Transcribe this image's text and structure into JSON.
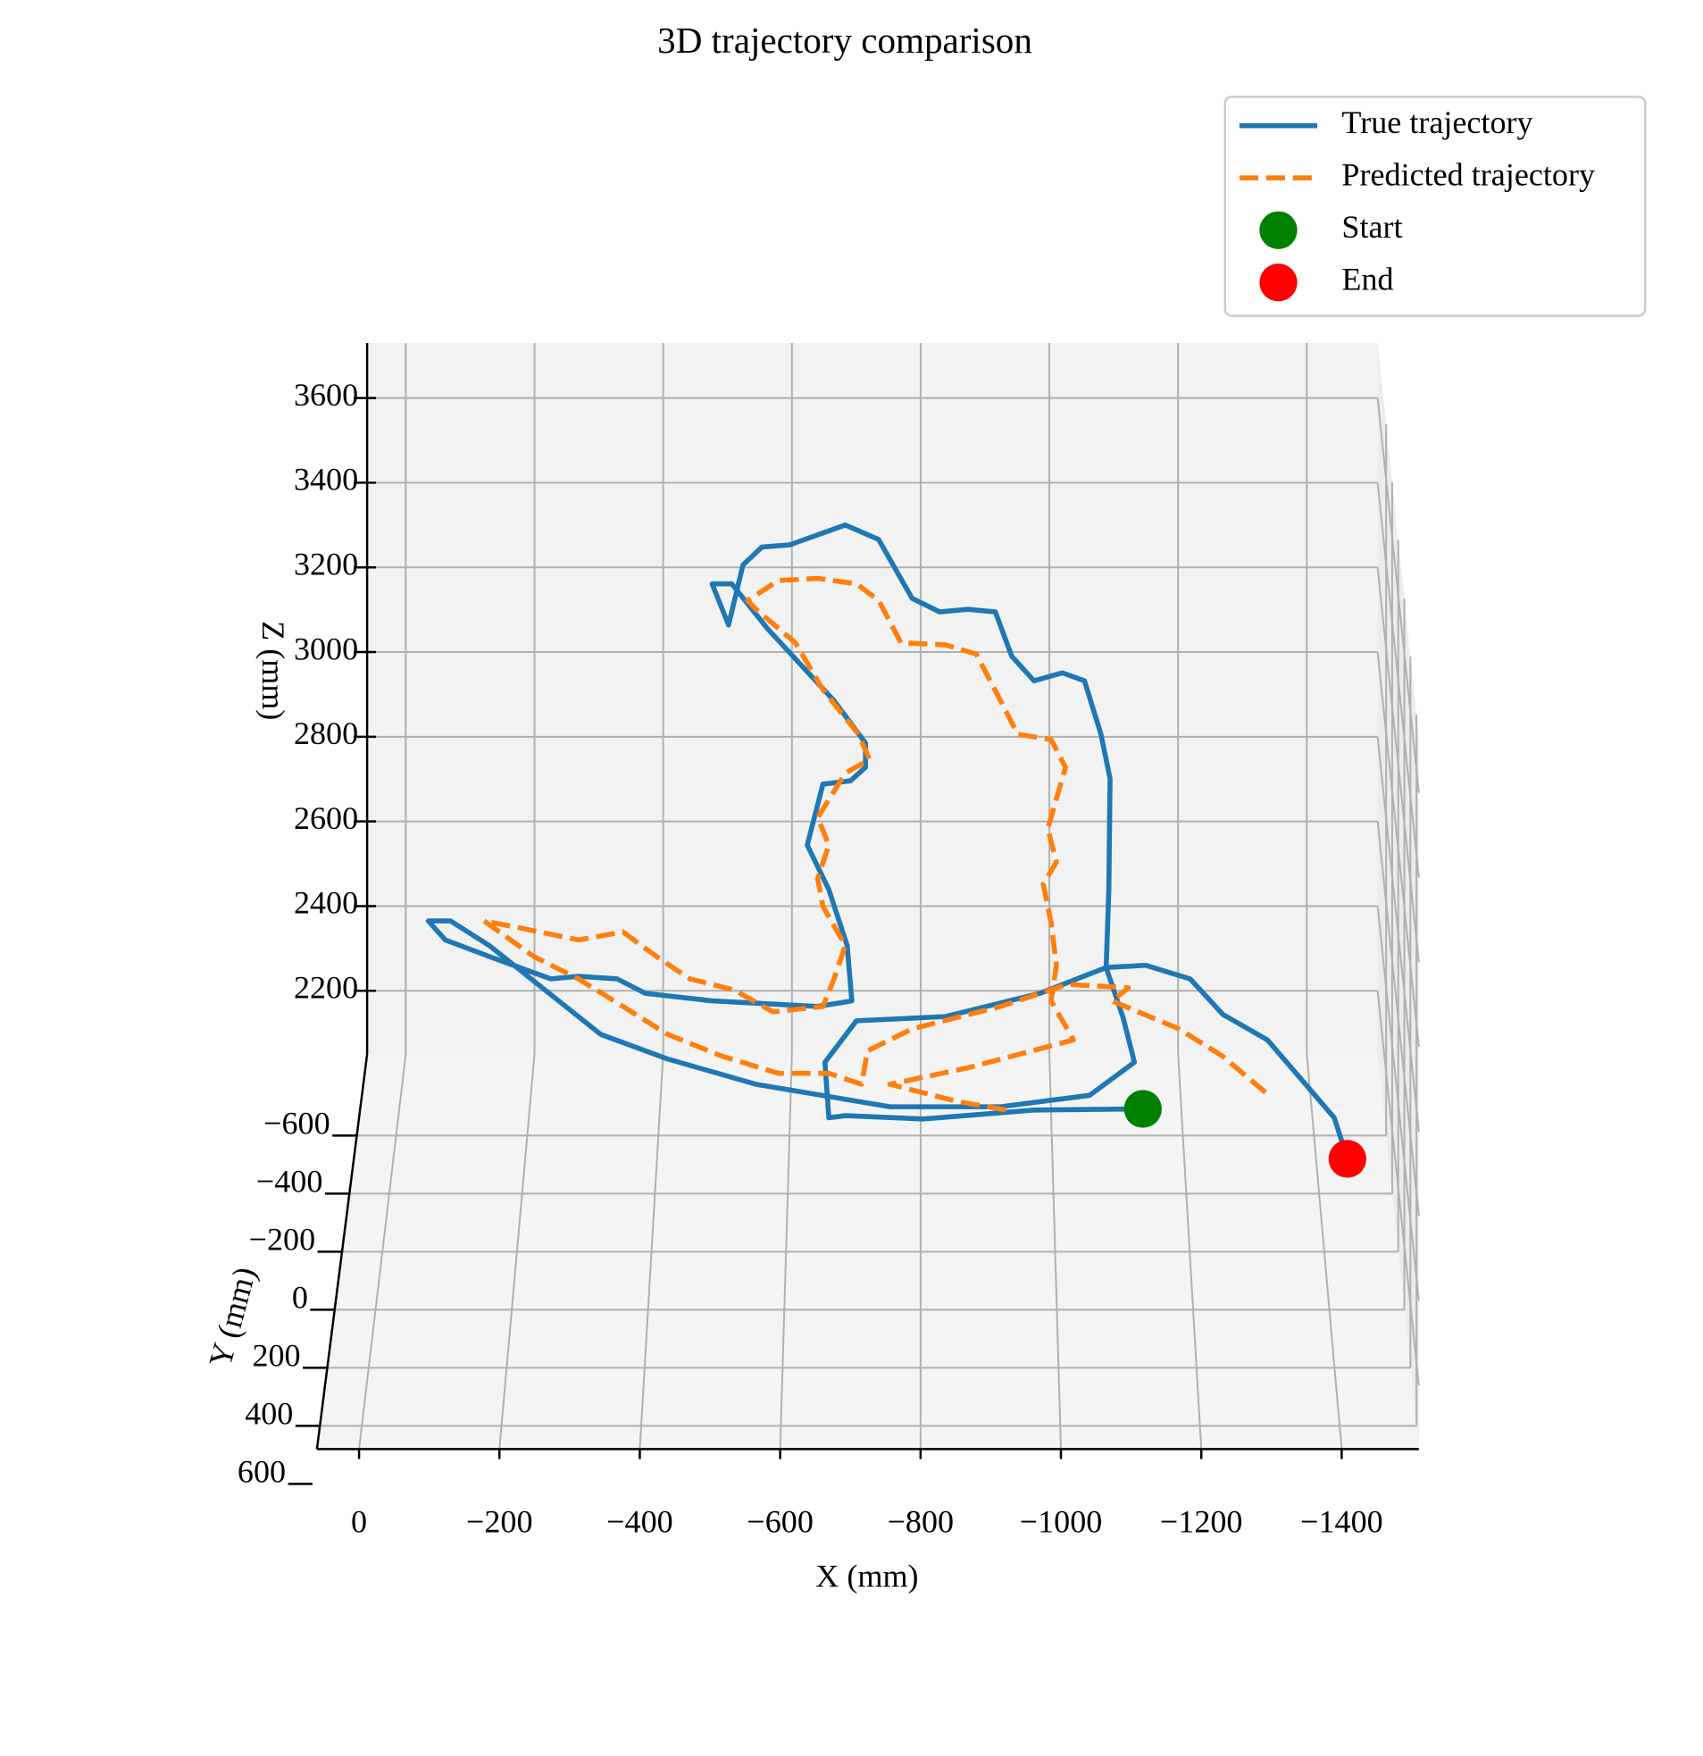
{
  "chart_data": {
    "type": "line3d",
    "title": "3D trajectory comparison",
    "xlabel": "X (mm)",
    "ylabel": "Y (mm)",
    "zlabel": "Z (mm)",
    "xlim": [
      60,
      -1510
    ],
    "ylim": [
      -880,
      480
    ],
    "zlim": [
      2050,
      3730
    ],
    "xticks": [
      0,
      {
        "value": -200,
        "label": "−200"
      },
      {
        "value": -400,
        "label": "−400"
      },
      {
        "value": -600,
        "label": "−600"
      },
      {
        "value": -800,
        "label": "−800"
      },
      {
        "value": -1000,
        "label": "−1000"
      },
      {
        "value": -1200,
        "label": "−1200"
      },
      {
        "value": -1400,
        "label": "−1400"
      }
    ],
    "yticks": [
      {
        "value": -600,
        "label": "−600"
      },
      {
        "value": -400,
        "label": "−400"
      },
      {
        "value": -200,
        "label": "−200"
      },
      0,
      200,
      400,
      600
    ],
    "zticks": [
      2200,
      2400,
      2600,
      2800,
      3000,
      3200,
      3400,
      3600
    ],
    "grid": true,
    "legend": "upper right",
    "series": [
      {
        "name": "True trajectory",
        "kind": "line",
        "style": "solid",
        "color": "#1f77b4",
        "x": [
          -1139,
          -973,
          -804,
          -685,
          -660,
          -654,
          -702,
          -838,
          -982,
          -1083,
          -1087,
          -1089,
          -1075,
          -1050,
          -1016,
          -973,
          -939,
          -914,
          -872,
          -829,
          -787,
          -736,
          -685,
          -600,
          -558,
          -529,
          -507,
          -482,
          -512,
          -566,
          -668,
          -716,
          -716,
          -693,
          -651,
          -627,
          -660,
          -688,
          -695,
          -643,
          -482,
          -380,
          -337,
          -278,
          -236,
          -142,
          -75,
          -49,
          -83,
          -142,
          -227,
          -312,
          -414,
          -549,
          -753,
          -922,
          -1058,
          -1126,
          -1109,
          -1083,
          -1143,
          -1211,
          -1261,
          -1329,
          -1380,
          -1431,
          -1451
        ],
        "y": [
          -600,
          -600,
          -600,
          -600,
          -600,
          -600,
          -600,
          -600,
          -600,
          -600,
          -600,
          -600,
          -600,
          -600,
          -600,
          -600,
          -600,
          -600,
          -600,
          -600,
          -600,
          -600,
          -600,
          -600,
          -600,
          -600,
          -600,
          -600,
          -600,
          -600,
          -600,
          -600,
          -600,
          -600,
          -600,
          -600,
          -600,
          -600,
          -600,
          -600,
          -600,
          -600,
          -600,
          -600,
          -600,
          -600,
          -600,
          -600,
          -600,
          -600,
          -600,
          -600,
          -600,
          -600,
          -600,
          -600,
          -600,
          -600,
          -600,
          -600,
          -600,
          -600,
          -600,
          -600,
          -600,
          -600,
          -600
        ],
        "z": [
          2113,
          2110,
          2089,
          2097,
          2092,
          2223,
          2321,
          2331,
          2386,
          2447,
          2631,
          2893,
          2998,
          3124,
          3143,
          3124,
          3182,
          3287,
          3293,
          3287,
          3319,
          3458,
          3492,
          3445,
          3440,
          3398,
          3256,
          3353,
          3353,
          3248,
          3077,
          2977,
          2920,
          2888,
          2880,
          2736,
          2631,
          2499,
          2368,
          2355,
          2368,
          2386,
          2420,
          2426,
          2420,
          2473,
          2512,
          2557,
          2557,
          2499,
          2394,
          2289,
          2231,
          2171,
          2118,
          2118,
          2145,
          2223,
          2328,
          2447,
          2452,
          2420,
          2336,
          2276,
          2184,
          2092,
          1995
        ]
      },
      {
        "name": "Predicted trajectory",
        "kind": "line",
        "style": "dashed",
        "color": "#ff7f0e",
        "x": [
          -1326,
          -1261,
          -1194,
          -1092,
          -1117,
          -1024,
          -922,
          -787,
          -719,
          -710,
          -660,
          -583,
          -498,
          -414,
          -346,
          -278,
          -210,
          -134,
          -193,
          -278,
          -346,
          -397,
          -448,
          -515,
          -575,
          -651,
          -668,
          -685,
          -651,
          -643,
          -660,
          -643,
          -685,
          -722,
          -705,
          -651,
          -609,
          -549,
          -536,
          -583,
          -643,
          -702,
          -736,
          -770,
          -838,
          -885,
          -922,
          -948,
          -999,
          -1021,
          -994,
          -1007,
          -987,
          -999,
          -1007,
          -999,
          -1033,
          -872,
          -753,
          -855,
          -931
        ],
        "y": [
          -600,
          -600,
          -600,
          -600,
          -600,
          -600,
          -600,
          -600,
          -600,
          -600,
          -600,
          -600,
          -600,
          -600,
          -600,
          -600,
          -600,
          -600,
          -600,
          -600,
          -600,
          -600,
          -600,
          -600,
          -600,
          -600,
          -600,
          -600,
          -600,
          -600,
          -600,
          -600,
          -600,
          -600,
          -600,
          -600,
          -600,
          -600,
          -600,
          -600,
          -600,
          -600,
          -600,
          -600,
          -600,
          -600,
          -600,
          -600,
          -600,
          -600,
          -600,
          -600,
          -600,
          -600,
          -600,
          -600,
          -600,
          -600,
          -600,
          -600,
          -600
        ],
        "z": [
          2152,
          2237,
          2302,
          2368,
          2399,
          2407,
          2355,
          2302,
          2250,
          2171,
          2197,
          2197,
          2237,
          2289,
          2355,
          2420,
          2473,
          2557,
          2539,
          2512,
          2531,
          2473,
          2420,
          2394,
          2342,
          2355,
          2420,
          2499,
          2591,
          2657,
          2736,
          2801,
          2906,
          2938,
          2998,
          3103,
          3214,
          3293,
          3314,
          3361,
          3366,
          3353,
          3314,
          3214,
          3209,
          3187,
          3077,
          2998,
          2985,
          2920,
          2775,
          2696,
          2644,
          2552,
          2452,
          2368,
          2276,
          2210,
          2171,
          2131,
          2110
        ]
      },
      {
        "name": "Start",
        "kind": "scatter",
        "color": "green",
        "x": [
          -1139
        ],
        "y": [
          -600
        ],
        "z": [
          2113
        ]
      },
      {
        "name": "End",
        "kind": "scatter",
        "color": "red",
        "x": [
          -1451
        ],
        "y": [
          -600
        ],
        "z": [
          1995
        ]
      }
    ]
  }
}
